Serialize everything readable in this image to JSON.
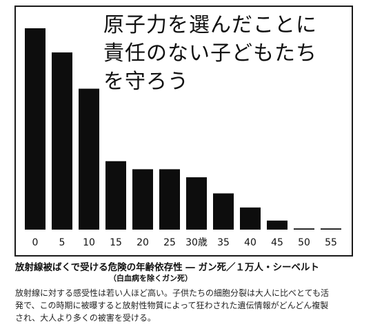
{
  "headline": {
    "lines": [
      "原子力を選んだことに",
      "責任のない子どもたち",
      "を守ろう"
    ]
  },
  "caption": {
    "title": "放射線被ばくで受ける危険の年齢依存性 ― ガン死／１万人・シーベルト",
    "subtitle": "（白血病を除くガン死）",
    "body_lines": [
      "放射線に対する感受性は若い人ほど高い。子供たちの細胞分裂は大人に比べとても活",
      "発で、この時期に被曝すると放射性物質によって狂わされた遺伝情報がどんどん複製",
      "され、大人より多くの被害を受ける。"
    ]
  },
  "colors": {
    "bar": "#0d0d0d",
    "frame": "#1a1a1a",
    "text": "#111111"
  },
  "chart_data": {
    "type": "bar",
    "title": "",
    "xlabel": "",
    "ylabel": "",
    "categories": [
      "0",
      "5",
      "10",
      "15",
      "20",
      "25",
      "30歳",
      "35",
      "40",
      "45",
      "50",
      "55"
    ],
    "values": [
      100,
      88,
      70,
      34,
      30,
      30,
      26,
      18,
      11,
      4.5,
      0.6,
      0.6
    ],
    "ylim": [
      0,
      100
    ],
    "grid": false,
    "legend": "none"
  }
}
